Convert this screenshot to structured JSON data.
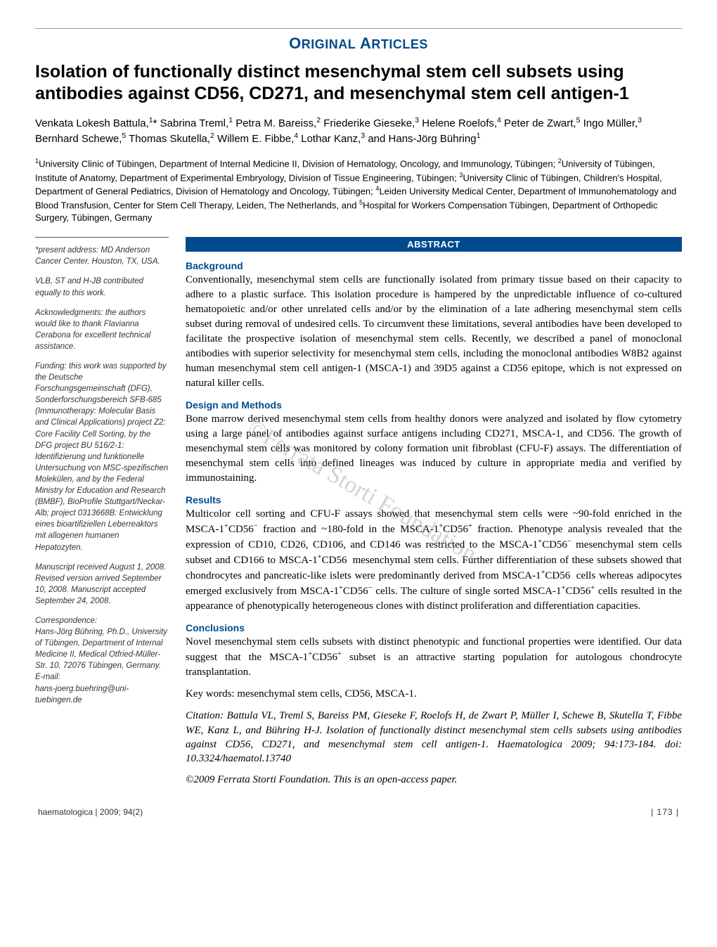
{
  "header": {
    "section_label_html": "O<span class='small-caps'>RIGINAL</span> A<span class='small-caps'>RTICLES</span>"
  },
  "title": "Isolation of functionally distinct mesenchymal stem cell subsets using antibodies against CD56, CD271, and mesenchymal stem cell antigen-1",
  "authors_html": "Venkata Lokesh Battula,<sup>1</sup>* Sabrina Treml,<sup>1</sup> Petra M. Bareiss,<sup>2</sup> Friederike Gieseke,<sup>3</sup> Helene Roelofs,<sup>4</sup> Peter de Zwart,<sup>5</sup> Ingo M&uuml;ller,<sup>3</sup> Bernhard Schewe,<sup>5</sup> Thomas Skutella,<sup>2</sup> Willem E. Fibbe,<sup>4</sup> Lothar Kanz,<sup>3</sup> and Hans-J&ouml;rg B&uuml;hring<sup>1</sup>",
  "affiliations_html": "<sup>1</sup>University Clinic of T&uuml;bingen, Department of Internal Medicine II, Division of Hematology, Oncology, and Immunology, T&uuml;bingen; <sup>2</sup>University of T&uuml;bingen, Institute of Anatomy, Department of Experimental Embryology, Division of Tissue Engineering, T&uuml;bingen; <sup>3</sup>University Clinic of T&uuml;bingen, Children's Hospital, Department of General Pediatrics, Division of Hematology and Oncology, T&uuml;bingen; <sup>4</sup>Leiden University Medical Center, Department of Immunohematology and Blood Transfusion, Center for Stem Cell Therapy, Leiden, The Netherlands, and <sup>5</sup>Hospital for Workers Compensation T&uuml;bingen, Department of Orthopedic Surgery, T&uuml;bingen, Germany",
  "sidebar": {
    "present_address": "*present address: MD Anderson Cancer Center, Houston, TX, USA.",
    "contrib": "VLB, ST and H-JB contributed equally to this work.",
    "ack": "Acknowledgments: the authors would like to thank Flavianna Cerabona for excellent technical assistance.",
    "funding": "Funding: this work was supported by the Deutsche Forschungsgemeinschaft (DFG), Sonderforschungsbereich SFB-685 (Immunotherapy: Molecular Basis and Clinical Applications) project Z2: Core Facility Cell Sorting, by the DFG project BU 516/2-1: Identifizierung und funktionelle Untersuchung von MSC-spezifischen Molekülen, and by the Federal Ministry for Education and Research (BMBF), BioProfile Stuttgart/Neckar-Alb; project 0313668B: Entwicklung eines bioartifiziellen Leberreaktors mit allogenen humanen Hepatozyten.",
    "dates": "Manuscript received August 1, 2008. Revised version arrived September 10, 2008. Manuscript accepted September 24, 2008.",
    "correspondence": "Correspondence:\nHans-Jörg Bühring, Ph.D., University of Tübingen, Department of Internal Medicine II, Medical Otfried-Müller-Str. 10, 72076 Tübingen, Germany.\nE-mail:\nhans-joerg.buehring@uni-tuebingen.de"
  },
  "abstract": {
    "band": "ABSTRACT",
    "sections": [
      {
        "heading": "Background",
        "body": "Conventionally, mesenchymal stem cells are functionally isolated from primary tissue based on their capacity to adhere to a plastic surface. This isolation procedure is hampered by the unpredictable influence of co-cultured hematopoietic and/or other unrelated cells and/or by the elimination of a late adhering mesenchymal stem cells subset during removal of undesired cells. To circumvent these limitations, several antibodies have been developed to facilitate the prospective isolation of mesenchymal stem cells. Recently, we described a panel of monoclonal antibodies with superior selectivity for mesenchymal stem cells, including the monoclonal antibodies W8B2 against human mesenchymal stem cell antigen-1 (MSCA-1) and 39D5 against a CD56 epitope, which is not expressed on natural killer cells."
      },
      {
        "heading": "Design and Methods",
        "body": "Bone marrow derived mesenchymal stem cells from healthy donors were analyzed and isolated by flow cytometry using a large panel of antibodies against surface antigens including CD271, MSCA-1, and CD56. The growth of mesenchymal stem cells was monitored by colony formation unit fibroblast (CFU-F) assays. The differentiation of mesenchymal stem cells into defined lineages was induced by culture in appropriate media and verified by immunostaining."
      },
      {
        "heading": "Results",
        "body_html": "Multicolor cell sorting and CFU-F assays showed that mesenchymal stem cells were ~90-fold enriched in the MSCA-1<sup>+</sup>CD56<sup>&minus;</sup> fraction and ~180-fold in the MSCA-1<sup>+</sup>CD56<sup>+</sup> fraction. Phenotype analysis revealed that the expression of CD10, CD26, CD106, and CD146 was restricted to the MSCA-1<sup>+</sup>CD56<sup>&minus;</sup> mesenchymal stem cells subset and CD166 to MSCA-1<sup>+</sup>CD56<sup>&nbsp;</sup> mesenchymal stem cells. Further differentiation of these subsets showed that chondrocytes and pancreatic-like islets were predominantly derived from MSCA-1<sup>+</sup>CD56<sup>&nbsp;</sup> cells whereas adipocytes emerged exclusively from MSCA-1<sup>+</sup>CD56<sup>&minus;</sup> cells. The culture of single sorted MSCA-1<sup>+</sup>CD56<sup>+</sup> cells resulted in the appearance of phenotypically heterogeneous clones with distinct proliferation and differentiation capacities."
      },
      {
        "heading": "Conclusions",
        "body_html": "Novel mesenchymal stem cells subsets with distinct phenotypic and functional properties were identified. Our data suggest that the MSCA-1<sup>+</sup>CD56<sup>+</sup> subset is an attractive starting population for autologous chondrocyte transplantation."
      }
    ]
  },
  "keywords": "Key words: mesenchymal stem cells, CD56, MSCA-1.",
  "citation": "Citation: Battula VL, Treml S, Bareiss PM, Gieseke F, Roelofs H, de Zwart P, Müller I, Schewe B, Skutella T, Fibbe WE, Kanz L, and Bühring H-J. Isolation of functionally distinct mesenchymal stem cells subsets using antibodies against CD56, CD271, and mesenchymal stem cell antigen-1. Haematologica 2009; 94:173-184. doi: 10.3324/haematol.13740",
  "copyright": "©2009 Ferrata Storti Foundation. This is an open-access paper.",
  "watermark": "©Ferrata Storti Foundation",
  "footer": {
    "left": "haematologica | 2009; 94(2)",
    "right": "| 173 |"
  },
  "colors": {
    "brand_blue": "#004b8d",
    "text": "#000000",
    "sidebar_text": "#333333",
    "rule": "#999999",
    "watermark": "rgba(130,130,130,0.35)"
  }
}
